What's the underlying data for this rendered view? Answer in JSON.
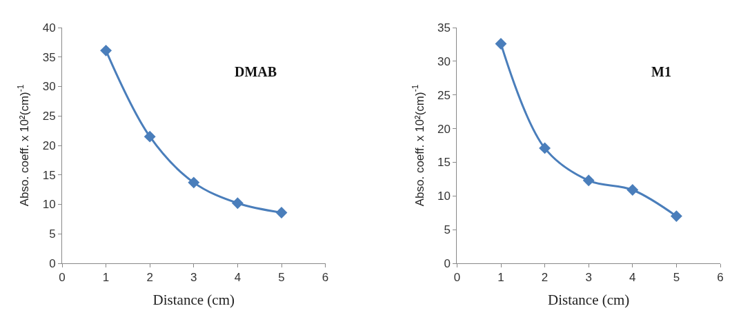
{
  "chart_data": [
    {
      "type": "line",
      "xlabel": "Distance (cm)",
      "ylabel": "Abso. coeff. x 10²(cm)$^{-1}$",
      "annotations": [
        "DMAB"
      ],
      "x": [
        1,
        2,
        3,
        4,
        5
      ],
      "series": [
        {
          "color": "#4a7ebb",
          "values": [
            36.1,
            21.5,
            13.7,
            10.2,
            8.6
          ]
        }
      ],
      "xlim": [
        0,
        6
      ],
      "xticks": [
        0,
        1,
        2,
        3,
        4,
        5,
        6
      ],
      "ylim": [
        0,
        40
      ],
      "yticks": [
        0,
        5,
        10,
        15,
        20,
        25,
        30,
        35,
        40
      ],
      "marker": "diamond",
      "line_style": "solid"
    },
    {
      "type": "line",
      "xlabel": "Distance (cm)",
      "ylabel": "Abso. coeff. x 10²(cm)$^{-1}$",
      "annotations": [
        "M1"
      ],
      "x": [
        1,
        2,
        3,
        4,
        5
      ],
      "series": [
        {
          "color": "#4a7ebb",
          "values": [
            32.6,
            17.1,
            12.3,
            10.9,
            7.0
          ]
        }
      ],
      "xlim": [
        0,
        6
      ],
      "xticks": [
        0,
        1,
        2,
        3,
        4,
        5,
        6
      ],
      "ylim": [
        0,
        35
      ],
      "yticks": [
        0,
        5,
        10,
        15,
        20,
        25,
        30,
        35
      ],
      "marker": "diamond",
      "line_style": "solid"
    }
  ]
}
